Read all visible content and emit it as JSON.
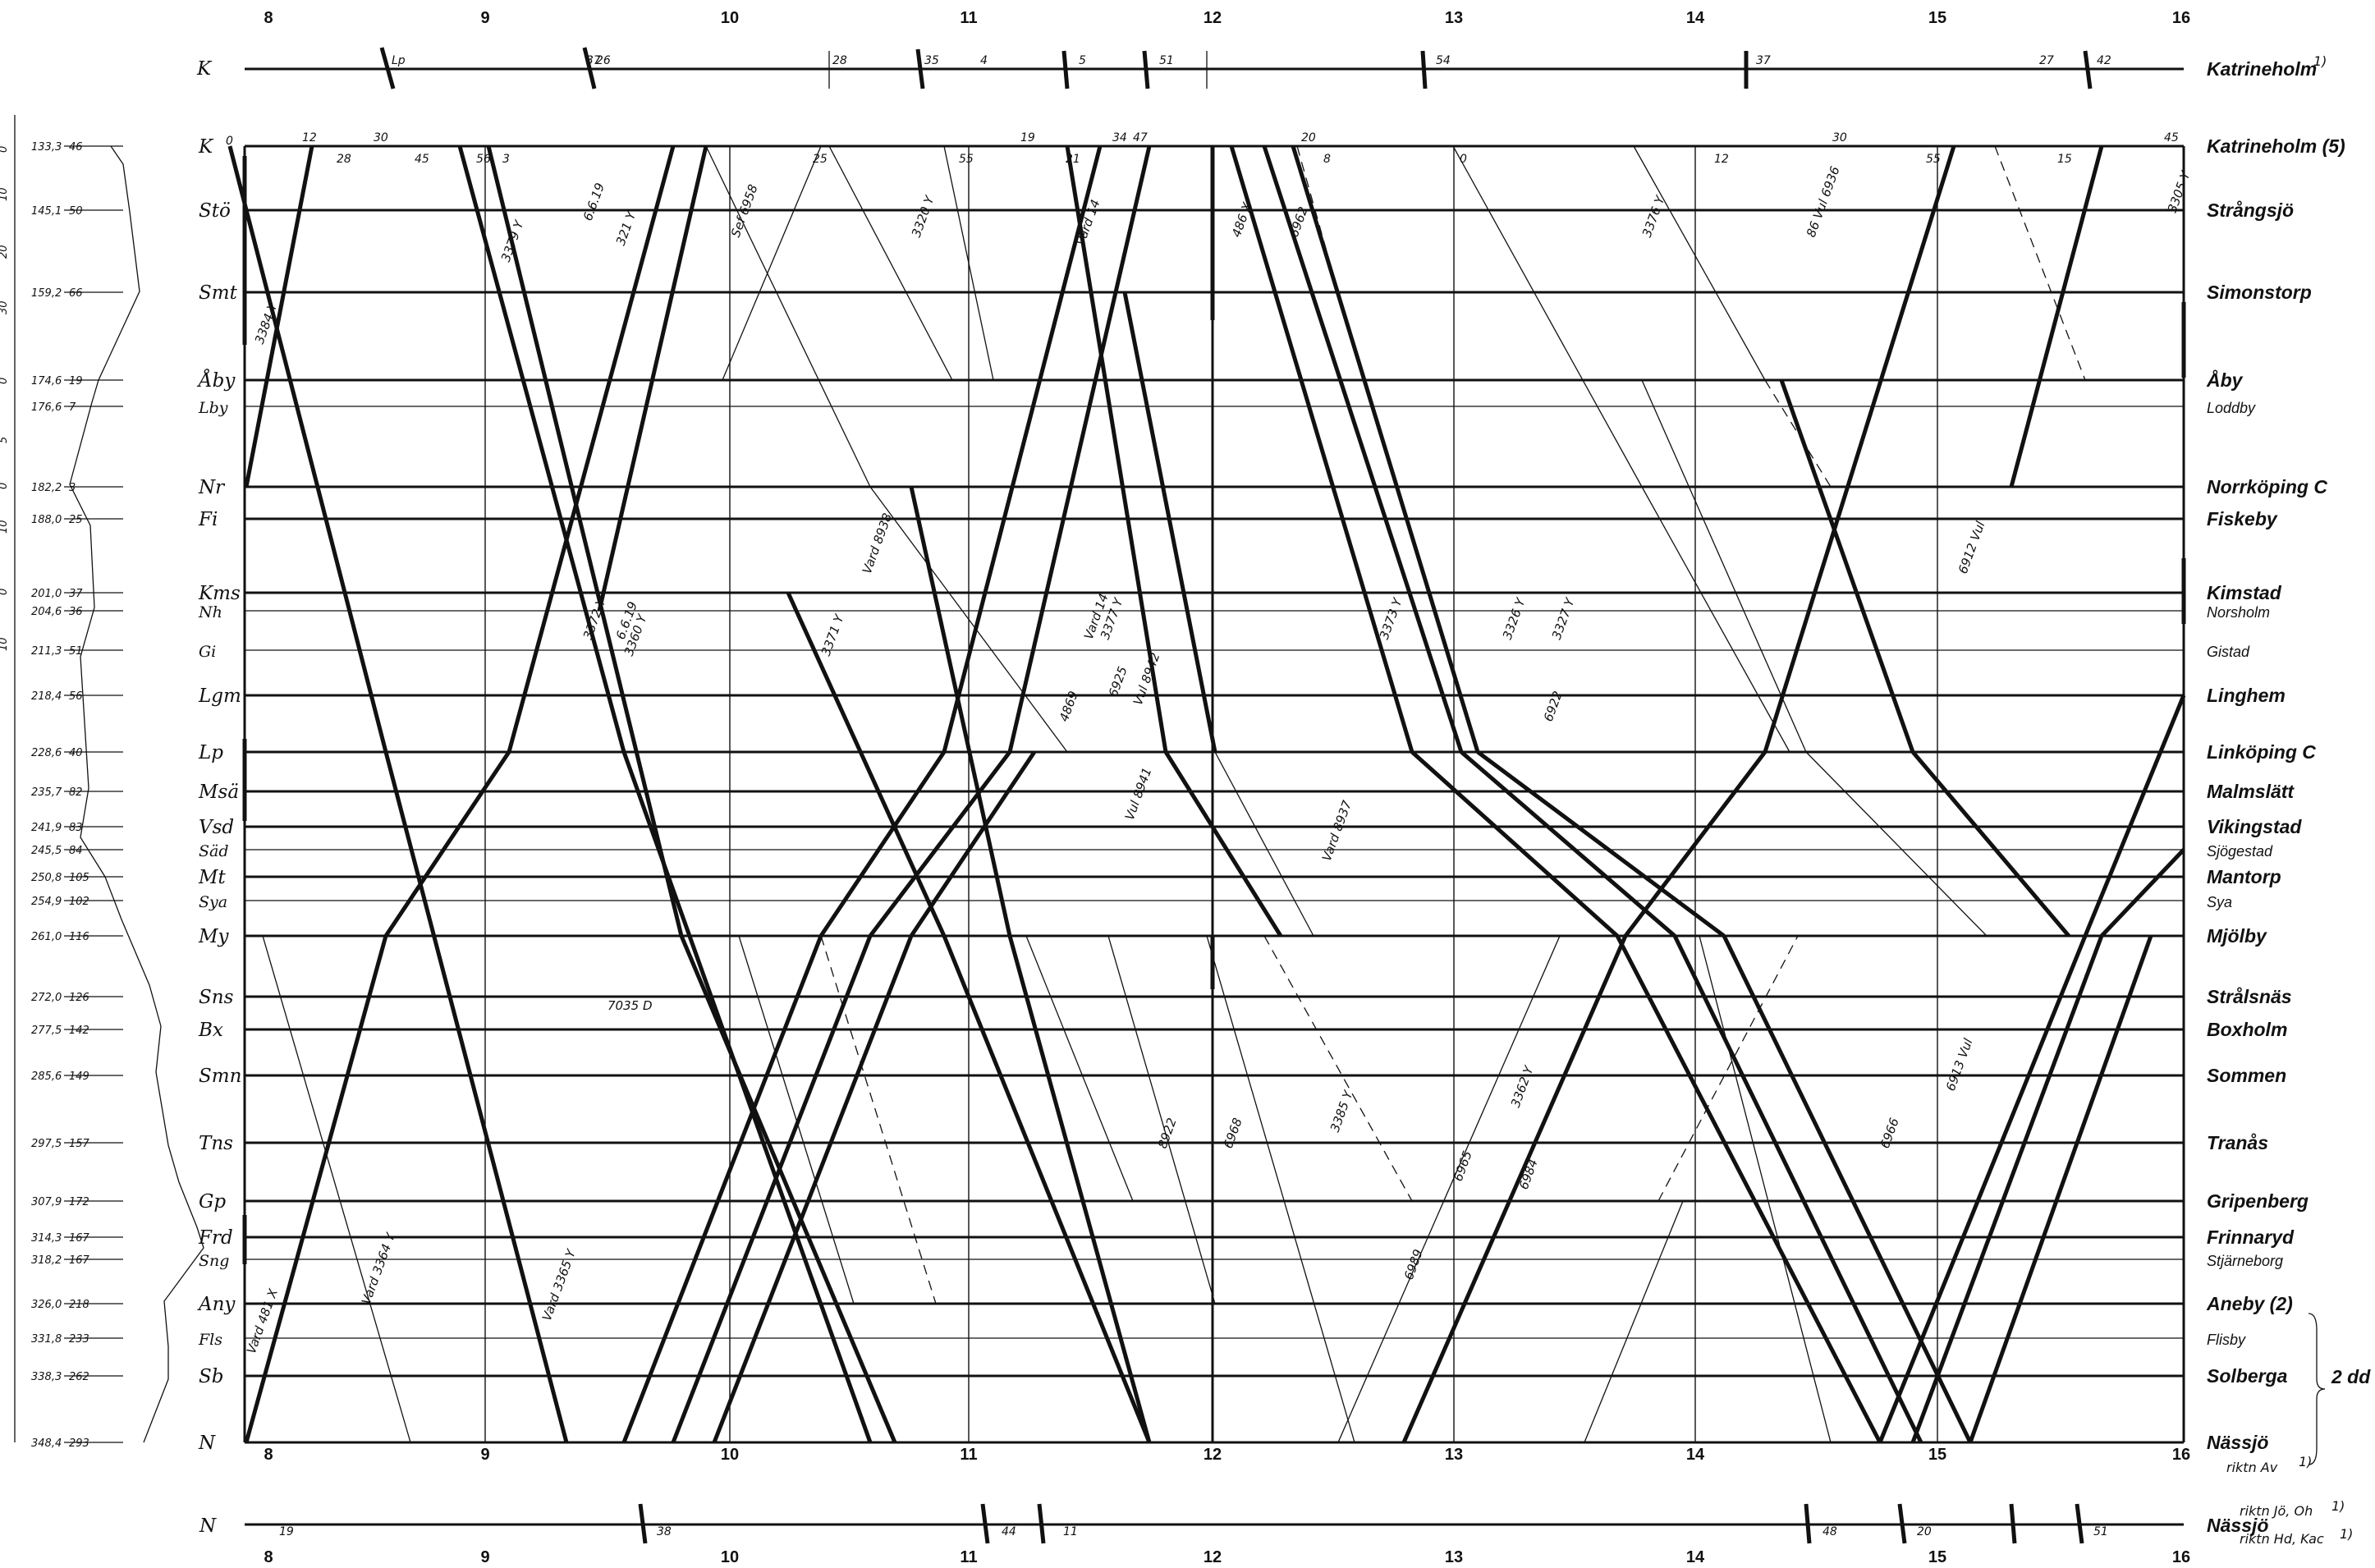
{
  "hours": [
    "8",
    "9",
    "10",
    "11",
    "12",
    "13",
    "14",
    "15",
    "16"
  ],
  "top_line": {
    "abbr": "K",
    "name": "Katrineholm",
    "footnote": "1)",
    "train_labels": [
      "Lp",
      "37",
      "26",
      "28",
      "35",
      "4",
      "5",
      "51",
      "54",
      "37",
      "27",
      "42"
    ]
  },
  "bottom_line": {
    "abbr": "N",
    "name": "Nässjö",
    "directions": [
      {
        "text": "riktn Av",
        "footnote": "1)"
      },
      {
        "text": "riktn Jö, Oh",
        "footnote": "1)"
      },
      {
        "text": "riktn Hd, Kac",
        "footnote": "1)"
      }
    ],
    "train_labels": [
      "19",
      "38",
      "44",
      "11",
      "48",
      "20",
      "51"
    ]
  },
  "stations": [
    {
      "abbr": "K",
      "name": "Katrineholm (5)",
      "km": "133,3",
      "height": "46",
      "major": true
    },
    {
      "abbr": "Stö",
      "name": "Strångsjö",
      "km": "145,1",
      "height": "50",
      "major": true
    },
    {
      "abbr": "Smt",
      "name": "Simonstorp",
      "km": "159,2",
      "height": "66",
      "major": true
    },
    {
      "abbr": "Åby",
      "name": "Åby",
      "km": "174,6",
      "height": "19",
      "major": true
    },
    {
      "abbr": "Lby",
      "name": "Loddby",
      "km": "176,6",
      "height": "7",
      "major": false
    },
    {
      "abbr": "Nr",
      "name": "Norrköping C",
      "km": "182,2",
      "height": "3",
      "major": true
    },
    {
      "abbr": "Fi",
      "name": "Fiskeby",
      "km": "188,0",
      "height": "25",
      "major": true
    },
    {
      "abbr": "Kms",
      "name": "Kimstad",
      "km": "201,0",
      "height": "37",
      "major": true
    },
    {
      "abbr": "Nh",
      "name": "Norsholm",
      "km": "204,6",
      "height": "36",
      "major": false
    },
    {
      "abbr": "Gi",
      "name": "Gistad",
      "km": "211,3",
      "height": "51",
      "major": false
    },
    {
      "abbr": "Lgm",
      "name": "Linghem",
      "km": "218,4",
      "height": "56",
      "major": true
    },
    {
      "abbr": "Lp",
      "name": "Linköping C",
      "km": "228,6",
      "height": "40",
      "major": true
    },
    {
      "abbr": "Msä",
      "name": "Malmslätt",
      "km": "235,7",
      "height": "82",
      "major": true
    },
    {
      "abbr": "Vsd",
      "name": "Vikingstad",
      "km": "241,9",
      "height": "83",
      "major": true
    },
    {
      "abbr": "Säd",
      "name": "Sjögestad",
      "km": "245,5",
      "height": "84",
      "major": false
    },
    {
      "abbr": "Mt",
      "name": "Mantorp",
      "km": "250,8",
      "height": "105",
      "major": true
    },
    {
      "abbr": "Sya",
      "name": "Sya",
      "km": "254,9",
      "height": "102",
      "major": false
    },
    {
      "abbr": "My",
      "name": "Mjölby",
      "km": "261,0",
      "height": "116",
      "major": true
    },
    {
      "abbr": "Sns",
      "name": "Strålsnäs",
      "km": "272,0",
      "height": "126",
      "major": true
    },
    {
      "abbr": "Bx",
      "name": "Boxholm",
      "km": "277,5",
      "height": "142",
      "major": true
    },
    {
      "abbr": "Smn",
      "name": "Sommen",
      "km": "285,6",
      "height": "149",
      "major": true
    },
    {
      "abbr": "Tns",
      "name": "Tranås",
      "km": "297,5",
      "height": "157",
      "major": true
    },
    {
      "abbr": "Gp",
      "name": "Gripenberg",
      "km": "307,9",
      "height": "172",
      "major": true
    },
    {
      "abbr": "Frd",
      "name": "Frinnaryd",
      "km": "314,3",
      "height": "167",
      "major": true
    },
    {
      "abbr": "Sng",
      "name": "Stjärneborg",
      "km": "318,2",
      "height": "167",
      "major": false
    },
    {
      "abbr": "Any",
      "name": "Aneby (2)",
      "km": "326,0",
      "height": "218",
      "major": true
    },
    {
      "abbr": "Fls",
      "name": "Flisby",
      "km": "331,8",
      "height": "233",
      "major": false
    },
    {
      "abbr": "Sb",
      "name": "Solberga",
      "km": "338,3",
      "height": "262",
      "major": true
    },
    {
      "abbr": "N",
      "name": "Nässjö",
      "km": "348,4",
      "height": "293",
      "major": true
    }
  ],
  "double_track_note": "2 dd",
  "profile_scale": [
    "0",
    "10",
    "20",
    "30",
    "0",
    "5",
    "0",
    "10",
    "0",
    "10"
  ],
  "train_numbers": [
    {
      "text": "3379 Y"
    },
    {
      "text": "321 Y"
    },
    {
      "text": "6.6.19"
    },
    {
      "text": "Vard 14"
    },
    {
      "text": "3320 Y"
    },
    {
      "text": "Vard 14"
    },
    {
      "text": "3377 Y"
    },
    {
      "text": "486 X"
    },
    {
      "text": "6962"
    },
    {
      "text": "3376 Y"
    },
    {
      "text": "86 Vul 6936"
    },
    {
      "text": "3305 Y"
    },
    {
      "text": "3384 Y"
    },
    {
      "text": "3372 Y"
    },
    {
      "text": "6.6.19"
    },
    {
      "text": "3373 Y"
    },
    {
      "text": "3326 Y"
    },
    {
      "text": "3327 Y"
    },
    {
      "text": "6912 Vul"
    },
    {
      "text": "6925"
    },
    {
      "text": "4869"
    },
    {
      "text": "Vul 8942"
    },
    {
      "text": "Sef 6958"
    },
    {
      "text": "Vard 8938"
    },
    {
      "text": "3371 Y"
    },
    {
      "text": "6922"
    },
    {
      "text": "Vul 8941"
    },
    {
      "text": "3360 Y"
    },
    {
      "text": "Vard 8937"
    },
    {
      "text": "7035 D"
    },
    {
      "text": "6913 Vul"
    },
    {
      "text": "6968"
    },
    {
      "text": "8922"
    },
    {
      "text": "3362 Y"
    },
    {
      "text": "6965"
    },
    {
      "text": "6984"
    },
    {
      "text": "Vard 3364 Y"
    },
    {
      "text": "Vard 3365 Y"
    },
    {
      "text": "Vard 481 X"
    },
    {
      "text": "6989"
    },
    {
      "text": "6966"
    },
    {
      "text": "3385 Y"
    }
  ],
  "minute_labels": [
    "0",
    "12",
    "28",
    "30",
    "45",
    "56",
    "3",
    "25",
    "55",
    "19",
    "21",
    "34",
    "47",
    "20",
    "8",
    "0",
    "12",
    "30",
    "55",
    "15",
    "45"
  ]
}
